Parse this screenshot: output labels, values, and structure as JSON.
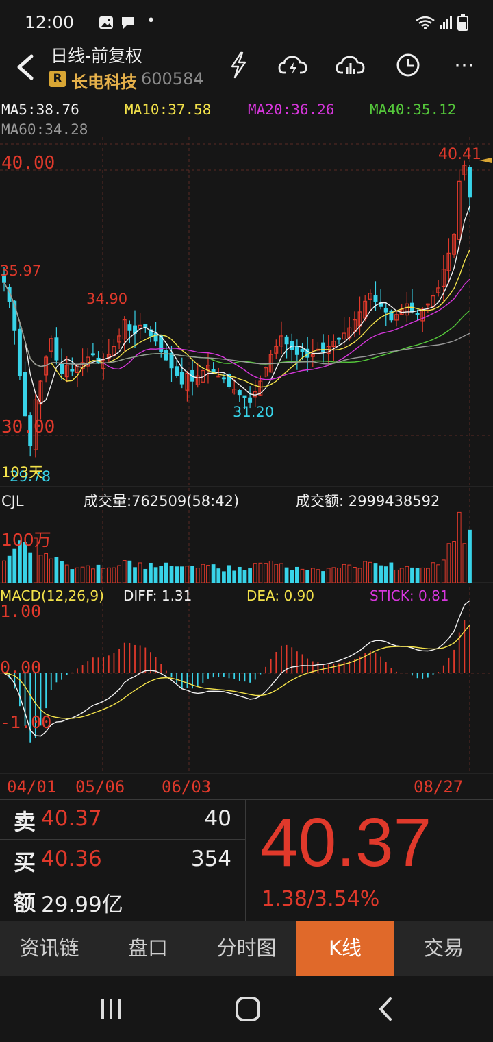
{
  "status_bar": {
    "time": "12:00",
    "dot": "•"
  },
  "header": {
    "title": "日线-前复权",
    "stock_badge": "R",
    "stock_name": "长电科技",
    "stock_code": "600584",
    "menu_glyph": "⋯"
  },
  "ma": {
    "ma5": "MA5:38.76",
    "ma10": "MA10:37.58",
    "ma20": "MA20:36.26",
    "ma40": "MA40:35.12",
    "ma60": "MA60:34.28"
  },
  "colors": {
    "up": "#e0392b",
    "down": "#38d3e8",
    "ma5": "#f2f2f2",
    "ma10": "#f3e24a",
    "ma20": "#d736dc",
    "ma40": "#55c93b",
    "ma60": "#9a9a9a",
    "accent": "#e0692a",
    "bg": "#161616"
  },
  "price_chart": {
    "y_label_40": "40.00",
    "y_label_30": "30.00",
    "label_high": "40.41",
    "label_3597": "35.97",
    "label_3490": "34.90",
    "label_low_mid": "31.20",
    "label_low": "29.78",
    "label_days": "103天",
    "ylim": [
      28.6,
      41.3
    ]
  },
  "volume": {
    "title": "CJL",
    "vol_text": "成交量:762509(58:42)",
    "amount_text": "成交额: 2999438592",
    "scale_label": "100万"
  },
  "macd": {
    "title": "MACD(12,26,9)",
    "diff": "DIFF: 1.31",
    "dea": "DEA: 0.90",
    "stick": "STICK: 0.81",
    "label_1": "1.00",
    "label_0": "0.00",
    "label_m1": "-1.00"
  },
  "chart_data": {
    "type": "candlestick",
    "x_ticks": [
      "04/01",
      "05/06",
      "06/03",
      "08/27"
    ],
    "price_range": [
      29.78,
      40.41
    ],
    "last": {
      "ma5": 38.76,
      "ma10": 37.58,
      "ma20": 36.26,
      "ma40": 35.12,
      "ma60": 34.28
    },
    "closes": [
      36.0,
      35.3,
      34.2,
      32.5,
      31.0,
      29.9,
      31.6,
      32.3,
      33.2,
      33.9,
      33.1,
      32.6,
      32.9,
      32.7,
      32.9,
      33.0,
      33.2,
      33.3,
      33.0,
      33.1,
      33.3,
      33.6,
      34.0,
      34.6,
      34.2,
      34.1,
      34.4,
      34.3,
      34.0,
      33.8,
      33.4,
      33.1,
      32.8,
      32.5,
      32.2,
      32.6,
      32.3,
      32.5,
      32.7,
      32.9,
      32.6,
      32.5,
      32.4,
      32.1,
      32.0,
      31.8,
      31.7,
      31.5,
      31.9,
      32.3,
      32.8,
      33.3,
      33.6,
      34.0,
      33.7,
      33.5,
      33.3,
      33.4,
      33.2,
      33.3,
      33.5,
      33.4,
      33.6,
      33.8,
      33.9,
      34.1,
      34.3,
      34.6,
      34.9,
      35.3,
      35.6,
      35.3,
      35.1,
      34.9,
      34.6,
      34.8,
      35.0,
      35.2,
      34.9,
      34.8,
      35.0,
      35.2,
      35.5,
      35.8,
      36.5,
      37.1,
      37.8,
      39.8,
      40.4,
      39.2
    ]
  },
  "dates": {
    "d1": "04/01",
    "d2": "05/06",
    "d3": "06/03",
    "d4": "08/27"
  },
  "quote": {
    "sell_label": "卖",
    "sell_price": "40.37",
    "sell_vol": "40",
    "buy_label": "买",
    "buy_price": "40.36",
    "buy_vol": "354",
    "amount_label": "额",
    "amount": "29.99亿",
    "price": "40.37",
    "change": "1.38/3.54%"
  },
  "tabs": [
    {
      "label": "资讯链"
    },
    {
      "label": "盘口"
    },
    {
      "label": "分时图"
    },
    {
      "label": "K线"
    },
    {
      "label": "交易"
    }
  ]
}
